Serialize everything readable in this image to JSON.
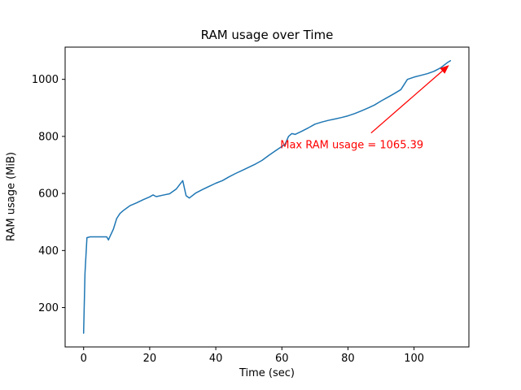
{
  "figure": {
    "background": "#ffffff",
    "axes_edge_color": "#000000"
  },
  "chart_data": {
    "type": "line",
    "title": "RAM usage over Time",
    "xlabel": "Time (sec)",
    "ylabel": "RAM usage (MiB)",
    "xlim": [
      -5.6,
      116.6
    ],
    "ylim": [
      62,
      1113
    ],
    "xticks": [
      0,
      20,
      40,
      60,
      80,
      100
    ],
    "yticks": [
      200,
      400,
      600,
      800,
      1000
    ],
    "grid": false,
    "legend": "none",
    "line_color": "#1f77b4",
    "max_value": 1065.39,
    "series": [
      {
        "name": "RAM usage",
        "x": [
          0,
          0.4,
          1,
          2,
          4,
          6,
          7,
          7.5,
          8,
          9,
          10,
          11,
          12,
          14,
          16,
          18,
          20,
          21,
          22,
          24,
          26,
          28,
          29,
          30,
          31,
          32,
          34,
          36,
          38,
          40,
          42,
          44,
          46,
          48,
          50,
          52,
          54,
          56,
          58,
          60,
          61,
          62,
          63,
          64,
          66,
          68,
          70,
          72,
          74,
          76,
          78,
          80,
          82,
          84,
          86,
          88,
          90,
          92,
          94,
          96,
          98,
          100,
          102,
          104,
          106,
          108,
          110,
          111
        ],
        "y": [
          110,
          320,
          445,
          448,
          448,
          448,
          448,
          437,
          450,
          475,
          512,
          530,
          540,
          557,
          567,
          578,
          588,
          595,
          589,
          594,
          599,
          615,
          630,
          645,
          592,
          584,
          602,
          614,
          625,
          636,
          645,
          658,
          670,
          681,
          692,
          703,
          716,
          733,
          749,
          765,
          773,
          800,
          810,
          807,
          818,
          830,
          843,
          850,
          856,
          861,
          866,
          872,
          880,
          889,
          899,
          910,
          924,
          937,
          950,
          964,
          1000,
          1008,
          1014,
          1020,
          1028,
          1040,
          1058,
          1065.39
        ]
      }
    ],
    "annotation": {
      "text": "Max RAM usage = 1065.39",
      "color": "#ff0000",
      "text_xy": [
        59.5,
        758
      ],
      "arrow_from": [
        87,
        812
      ],
      "arrow_to": [
        110.6,
        1050
      ]
    }
  }
}
